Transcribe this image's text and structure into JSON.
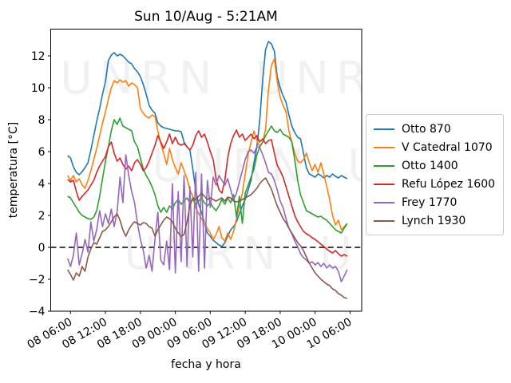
{
  "title": "Sun 10/Aug - 5:21AM",
  "watermark": "UNRN",
  "chart_data": {
    "type": "line",
    "title": "Sun 10/Aug - 5:21AM",
    "xlabel": "fecha y hora",
    "ylabel": "temperatura [°C]",
    "grid": false,
    "legend_position": "right-outside",
    "x_axis_note": "hours since Aug 08 00:00",
    "xlim_hours": [
      2.6,
      56.0
    ],
    "ylim": [
      -4.0,
      13.675
    ],
    "x_ticks_hours": [
      6,
      12,
      18,
      24,
      30,
      36,
      42,
      48,
      54
    ],
    "x_tick_labels": [
      "08 06:00",
      "08 12:00",
      "08 18:00",
      "09 00:00",
      "09 06:00",
      "09 12:00",
      "09 18:00",
      "10 00:00",
      "10 06:00"
    ],
    "y_ticks": [
      -4,
      -2,
      0,
      2,
      4,
      6,
      8,
      10,
      12
    ],
    "y_tick_labels": [
      "−4",
      "−2",
      "0",
      "2",
      "4",
      "6",
      "8",
      "10",
      "12"
    ],
    "zero_line": {
      "y": 0,
      "style": "dashed",
      "color": "#000000"
    },
    "t_start": 5.5,
    "t_step": 0.5,
    "series": [
      {
        "name": "Otto 870",
        "color": "#1f77b4",
        "values": [
          5.75,
          5.6,
          5.05,
          4.7,
          4.55,
          4.75,
          5.0,
          5.3,
          6.1,
          7.0,
          7.9,
          8.7,
          9.6,
          10.4,
          11.7,
          12.05,
          12.2,
          12.0,
          12.1,
          12.0,
          11.8,
          11.6,
          11.5,
          11.2,
          11.0,
          10.7,
          10.2,
          9.6,
          8.9,
          8.6,
          8.4,
          7.8,
          7.6,
          7.5,
          7.45,
          7.4,
          7.35,
          7.3,
          7.3,
          7.25,
          6.6,
          6.3,
          6.1,
          4.9,
          3.6,
          2.7,
          2.2,
          1.5,
          0.9,
          0.7,
          0.45,
          0.3,
          0.15,
          0.05,
          0.3,
          0.7,
          1.1,
          1.3,
          1.6,
          2.1,
          2.6,
          3.0,
          3.6,
          4.2,
          5.3,
          6.3,
          8.0,
          10.5,
          12.4,
          12.9,
          12.75,
          12.3,
          10.7,
          10.0,
          9.5,
          9.1,
          8.3,
          7.6,
          7.2,
          6.9,
          6.8,
          5.9,
          5.0,
          4.6,
          4.5,
          4.4,
          4.6,
          4.5,
          4.35,
          4.5,
          4.4,
          4.6,
          4.45,
          4.35,
          4.5,
          4.4,
          4.3
        ]
      },
      {
        "name": "V Catedral 1070",
        "color": "#ff7f0e",
        "values": [
          4.5,
          4.2,
          4.5,
          4.1,
          4.3,
          3.9,
          3.7,
          4.2,
          4.8,
          5.5,
          6.2,
          7.0,
          7.8,
          8.5,
          9.3,
          10.0,
          10.45,
          10.3,
          10.5,
          10.35,
          10.45,
          10.1,
          10.3,
          10.2,
          10.0,
          8.7,
          8.4,
          8.2,
          8.1,
          8.3,
          8.2,
          7.3,
          6.5,
          5.9,
          5.2,
          6.2,
          5.5,
          5.0,
          4.6,
          5.3,
          4.8,
          4.3,
          3.6,
          3.2,
          2.5,
          2.1,
          1.8,
          1.5,
          1.2,
          0.9,
          0.5,
          0.8,
          1.3,
          0.6,
          0.4,
          0.9,
          0.5,
          1.0,
          1.8,
          2.6,
          3.4,
          4.6,
          5.8,
          6.6,
          7.3,
          6.7,
          6.3,
          6.6,
          7.4,
          9.9,
          11.4,
          11.8,
          10.4,
          9.4,
          8.9,
          8.5,
          7.3,
          6.6,
          5.9,
          5.4,
          5.3,
          5.5,
          5.9,
          5.3,
          4.8,
          5.2,
          4.7,
          5.3,
          4.6,
          3.8,
          3.0,
          2.0,
          1.4,
          1.7,
          1.1,
          1.3,
          1.5
        ]
      },
      {
        "name": "Otto 1400",
        "color": "#2ca02c",
        "values": [
          3.2,
          3.1,
          2.8,
          2.5,
          2.2,
          2.0,
          1.9,
          1.8,
          1.75,
          1.9,
          2.3,
          3.2,
          4.3,
          5.4,
          6.3,
          7.3,
          8.0,
          7.7,
          8.1,
          7.6,
          7.5,
          7.4,
          7.3,
          6.6,
          6.3,
          5.6,
          4.9,
          4.5,
          4.2,
          3.8,
          3.3,
          2.6,
          2.2,
          2.5,
          2.2,
          2.6,
          2.4,
          2.8,
          3.0,
          2.7,
          2.9,
          3.1,
          2.8,
          3.0,
          2.7,
          2.9,
          3.1,
          2.8,
          2.6,
          2.8,
          2.5,
          2.3,
          2.6,
          3.0,
          2.7,
          3.1,
          2.8,
          3.3,
          1.9,
          3.2,
          1.5,
          3.4,
          3.9,
          4.4,
          4.9,
          5.8,
          6.3,
          6.6,
          7.0,
          7.3,
          7.6,
          7.3,
          7.2,
          7.4,
          7.1,
          7.0,
          6.9,
          6.6,
          5.5,
          4.2,
          3.3,
          2.8,
          2.3,
          2.2,
          2.1,
          2.0,
          1.9,
          1.95,
          1.8,
          1.7,
          1.5,
          1.3,
          1.1,
          1.0,
          0.9,
          1.2,
          1.5
        ]
      },
      {
        "name": "Refu López 1600",
        "color": "#d62728",
        "values": [
          4.25,
          4.1,
          4.2,
          3.5,
          2.95,
          3.2,
          3.4,
          3.6,
          3.9,
          4.2,
          4.7,
          5.1,
          5.4,
          5.7,
          6.3,
          6.6,
          5.9,
          5.4,
          5.6,
          5.2,
          4.9,
          5.1,
          4.8,
          5.3,
          5.5,
          5.2,
          4.8,
          5.0,
          5.4,
          5.9,
          6.4,
          7.0,
          6.6,
          6.2,
          6.6,
          7.1,
          6.5,
          6.9,
          6.5,
          6.4,
          6.5,
          6.3,
          6.1,
          6.4,
          7.0,
          7.3,
          6.9,
          7.1,
          6.6,
          6.0,
          5.5,
          4.3,
          3.6,
          3.4,
          4.2,
          5.6,
          6.5,
          7.0,
          7.35,
          6.9,
          7.1,
          6.7,
          6.9,
          7.1,
          6.8,
          7.0,
          6.6,
          6.8,
          6.5,
          6.7,
          6.75,
          5.9,
          5.15,
          4.8,
          4.4,
          3.8,
          3.2,
          2.6,
          2.0,
          1.6,
          1.3,
          1.0,
          0.85,
          0.75,
          0.6,
          0.5,
          0.35,
          0.2,
          0.05,
          -0.1,
          -0.25,
          -0.35,
          -0.2,
          -0.4,
          -0.55,
          -0.45,
          -0.55
        ]
      },
      {
        "name": "Frey 1770",
        "color": "#9467bd",
        "values": [
          -0.7,
          -1.2,
          -0.5,
          0.9,
          -1.1,
          -0.4,
          0.5,
          -0.3,
          1.6,
          0.4,
          1.1,
          2.3,
          1.3,
          2.1,
          1.5,
          2.4,
          1.3,
          2.2,
          4.4,
          2.8,
          5.8,
          4.5,
          3.5,
          2.8,
          1.5,
          0.5,
          -0.2,
          -1.3,
          -0.5,
          -1.5,
          0.5,
          2.2,
          -0.8,
          -1.1,
          0.4,
          -1.4,
          4.0,
          -1.6,
          3.5,
          -0.9,
          4.5,
          -1.2,
          3.8,
          -0.6,
          4.7,
          -1.5,
          4.6,
          -1.3,
          4.2,
          2.5,
          4.4,
          3.9,
          4.5,
          4.2,
          3.9,
          4.3,
          3.6,
          3.0,
          3.4,
          4.1,
          4.8,
          5.5,
          6.0,
          6.1,
          5.9,
          6.3,
          6.25,
          5.8,
          5.3,
          4.7,
          4.6,
          4.2,
          3.6,
          2.9,
          2.5,
          1.8,
          1.2,
          0.85,
          0.4,
          0.05,
          -0.4,
          -0.65,
          -0.8,
          -1.0,
          -0.9,
          -1.1,
          -0.95,
          -1.2,
          -1.0,
          -1.3,
          -1.1,
          -1.3,
          -1.2,
          -1.5,
          -2.15,
          -1.8,
          -1.4
        ]
      },
      {
        "name": "Lynch 1930",
        "color": "#8c564b",
        "values": [
          -1.4,
          -1.7,
          -2.05,
          -1.6,
          -1.8,
          -1.2,
          -1.5,
          -0.6,
          -0.1,
          0.3,
          0.2,
          0.6,
          1.0,
          1.1,
          1.3,
          1.6,
          1.9,
          2.1,
          1.7,
          1.1,
          0.7,
          1.1,
          1.4,
          1.6,
          1.5,
          1.4,
          1.55,
          1.5,
          1.3,
          1.2,
          0.7,
          1.1,
          1.4,
          1.7,
          1.9,
          1.8,
          1.6,
          1.2,
          0.9,
          0.7,
          0.8,
          1.6,
          2.6,
          3.1,
          3.0,
          3.2,
          3.4,
          3.2,
          3.0,
          3.1,
          3.0,
          2.9,
          3.0,
          3.1,
          2.9,
          3.15,
          3.1,
          2.9,
          2.85,
          2.9,
          3.0,
          3.1,
          3.2,
          3.3,
          3.5,
          3.7,
          4.0,
          4.2,
          4.35,
          4.0,
          3.65,
          3.1,
          2.6,
          2.2,
          1.8,
          1.55,
          1.2,
          0.9,
          0.6,
          0.3,
          0.1,
          -0.2,
          -0.6,
          -1.0,
          -1.3,
          -1.6,
          -1.8,
          -2.0,
          -2.15,
          -2.3,
          -2.4,
          -2.6,
          -2.7,
          -2.9,
          -3.0,
          -3.15,
          -3.2
        ]
      }
    ]
  }
}
